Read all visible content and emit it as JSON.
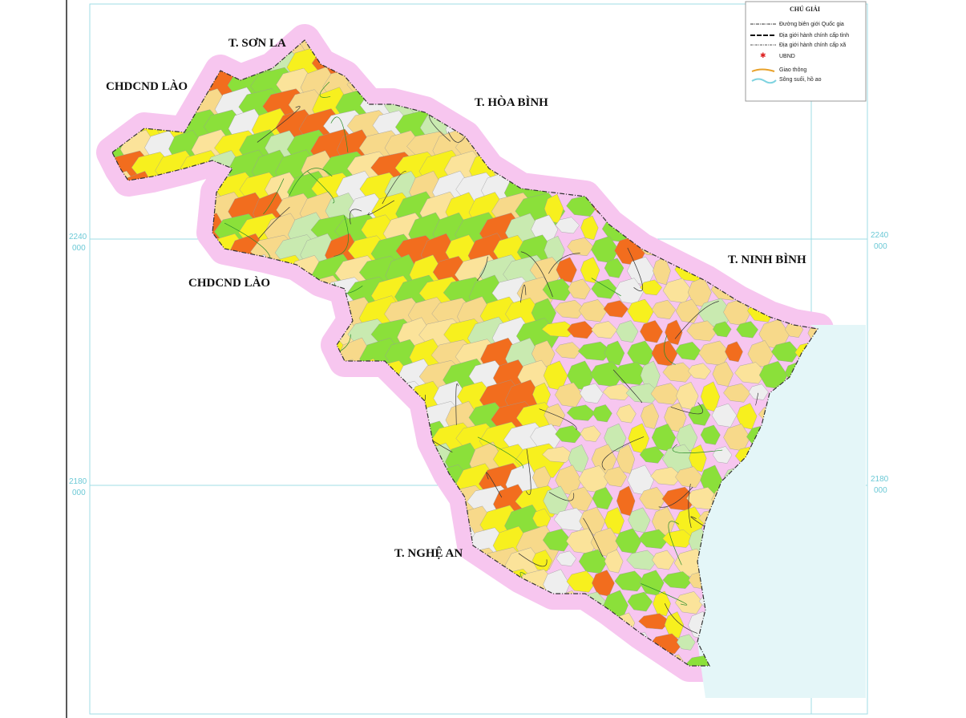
{
  "map": {
    "neighbors": [
      "T. SƠN LA",
      "CHDCND LÀO",
      "T. HÒA BÌNH",
      "CHDCND LÀO",
      "T. NINH BÌNH",
      "T. NGHỆ AN"
    ],
    "grid_labels": [
      {
        "top": "2240",
        "bottom": "000"
      },
      {
        "top": "2180",
        "bottom": "000"
      }
    ],
    "legend": {
      "title": "CHÚ GIẢI",
      "items": [
        "Đường biên giới Quốc gia",
        "Địa giới hành chính cấp tỉnh",
        "Địa giới hành chính cấp xã",
        "UBND",
        "Giao thông",
        "Sông suối, hồ ao"
      ]
    }
  }
}
